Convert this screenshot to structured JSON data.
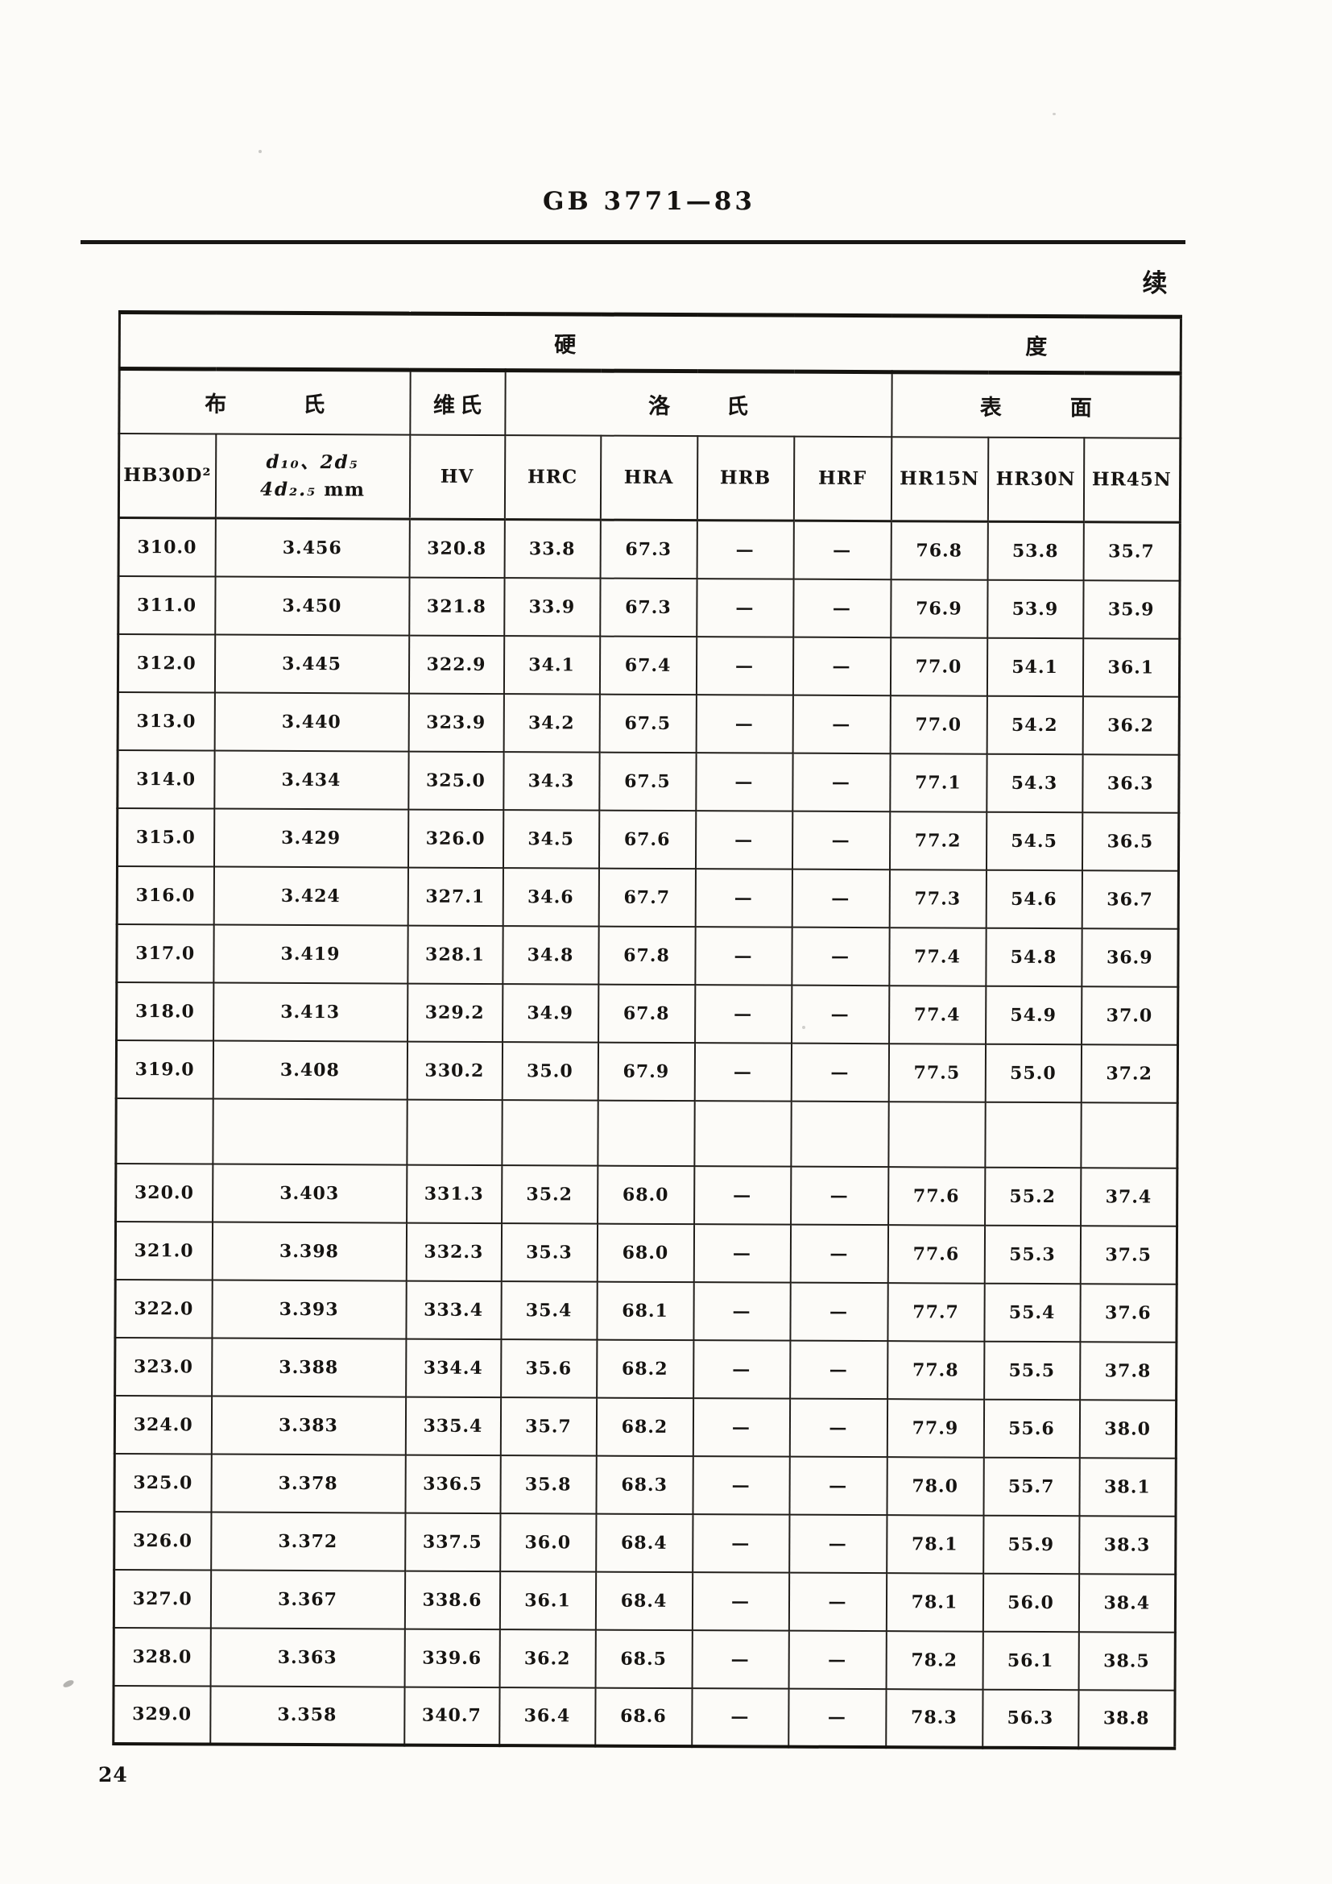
{
  "page": {
    "standard_code": "GB 3771—83",
    "continued_label": "续",
    "page_number": "24"
  },
  "table": {
    "title_row": {
      "left": "硬",
      "right": "度"
    },
    "group_headers": {
      "brinell": "布氏",
      "vickers": "维氏",
      "rockwell": "洛氏",
      "surface": "表面"
    },
    "column_headers": {
      "hb": "HB30D²",
      "d_line1": "d₁₀、2d₅",
      "d_line2_formula": "4d₂.₅",
      "d_line2_unit": "mm",
      "hv": "HV",
      "hrc": "HRC",
      "hra": "HRA",
      "hrb": "HRB",
      "hrf": "HRF",
      "hr15n": "HR15N",
      "hr30n": "HR30N",
      "hr45n": "HR45N"
    },
    "rows": [
      {
        "cells": [
          "310.0",
          "3.456",
          "320.8",
          "33.8",
          "67.3",
          "—",
          "—",
          "76.8",
          "53.8",
          "35.7"
        ]
      },
      {
        "cells": [
          "311.0",
          "3.450",
          "321.8",
          "33.9",
          "67.3",
          "—",
          "—",
          "76.9",
          "53.9",
          "35.9"
        ]
      },
      {
        "cells": [
          "312.0",
          "3.445",
          "322.9",
          "34.1",
          "67.4",
          "—",
          "—",
          "77.0",
          "54.1",
          "36.1"
        ]
      },
      {
        "cells": [
          "313.0",
          "3.440",
          "323.9",
          "34.2",
          "67.5",
          "—",
          "—",
          "77.0",
          "54.2",
          "36.2"
        ]
      },
      {
        "cells": [
          "314.0",
          "3.434",
          "325.0",
          "34.3",
          "67.5",
          "—",
          "—",
          "77.1",
          "54.3",
          "36.3"
        ]
      },
      {
        "cells": [
          "315.0",
          "3.429",
          "326.0",
          "34.5",
          "67.6",
          "—",
          "—",
          "77.2",
          "54.5",
          "36.5"
        ]
      },
      {
        "cells": [
          "316.0",
          "3.424",
          "327.1",
          "34.6",
          "67.7",
          "—",
          "—",
          "77.3",
          "54.6",
          "36.7"
        ]
      },
      {
        "cells": [
          "317.0",
          "3.419",
          "328.1",
          "34.8",
          "67.8",
          "—",
          "—",
          "77.4",
          "54.8",
          "36.9"
        ]
      },
      {
        "cells": [
          "318.0",
          "3.413",
          "329.2",
          "34.9",
          "67.8",
          "—",
          "—",
          "77.4",
          "54.9",
          "37.0"
        ]
      },
      {
        "cells": [
          "319.0",
          "3.408",
          "330.2",
          "35.0",
          "67.9",
          "—",
          "—",
          "77.5",
          "55.0",
          "37.2"
        ]
      },
      {
        "cells": [
          "",
          "",
          "",
          "",
          "",
          "",
          "",
          "",
          "",
          ""
        ],
        "spacer": true
      },
      {
        "cells": [
          "320.0",
          "3.403",
          "331.3",
          "35.2",
          "68.0",
          "—",
          "—",
          "77.6",
          "55.2",
          "37.4"
        ]
      },
      {
        "cells": [
          "321.0",
          "3.398",
          "332.3",
          "35.3",
          "68.0",
          "—",
          "—",
          "77.6",
          "55.3",
          "37.5"
        ]
      },
      {
        "cells": [
          "322.0",
          "3.393",
          "333.4",
          "35.4",
          "68.1",
          "—",
          "—",
          "77.7",
          "55.4",
          "37.6"
        ]
      },
      {
        "cells": [
          "323.0",
          "3.388",
          "334.4",
          "35.6",
          "68.2",
          "—",
          "—",
          "77.8",
          "55.5",
          "37.8"
        ]
      },
      {
        "cells": [
          "324.0",
          "3.383",
          "335.4",
          "35.7",
          "68.2",
          "—",
          "—",
          "77.9",
          "55.6",
          "38.0"
        ]
      },
      {
        "cells": [
          "325.0",
          "3.378",
          "336.5",
          "35.8",
          "68.3",
          "—",
          "—",
          "78.0",
          "55.7",
          "38.1"
        ]
      },
      {
        "cells": [
          "326.0",
          "3.372",
          "337.5",
          "36.0",
          "68.4",
          "—",
          "—",
          "78.1",
          "55.9",
          "38.3"
        ]
      },
      {
        "cells": [
          "327.0",
          "3.367",
          "338.6",
          "36.1",
          "68.4",
          "—",
          "—",
          "78.1",
          "56.0",
          "38.4"
        ]
      },
      {
        "cells": [
          "328.0",
          "3.363",
          "339.6",
          "36.2",
          "68.5",
          "—",
          "—",
          "78.2",
          "56.1",
          "38.5"
        ]
      },
      {
        "cells": [
          "329.0",
          "3.358",
          "340.7",
          "36.4",
          "68.6",
          "—",
          "—",
          "78.3",
          "56.3",
          "38.8"
        ]
      }
    ]
  }
}
